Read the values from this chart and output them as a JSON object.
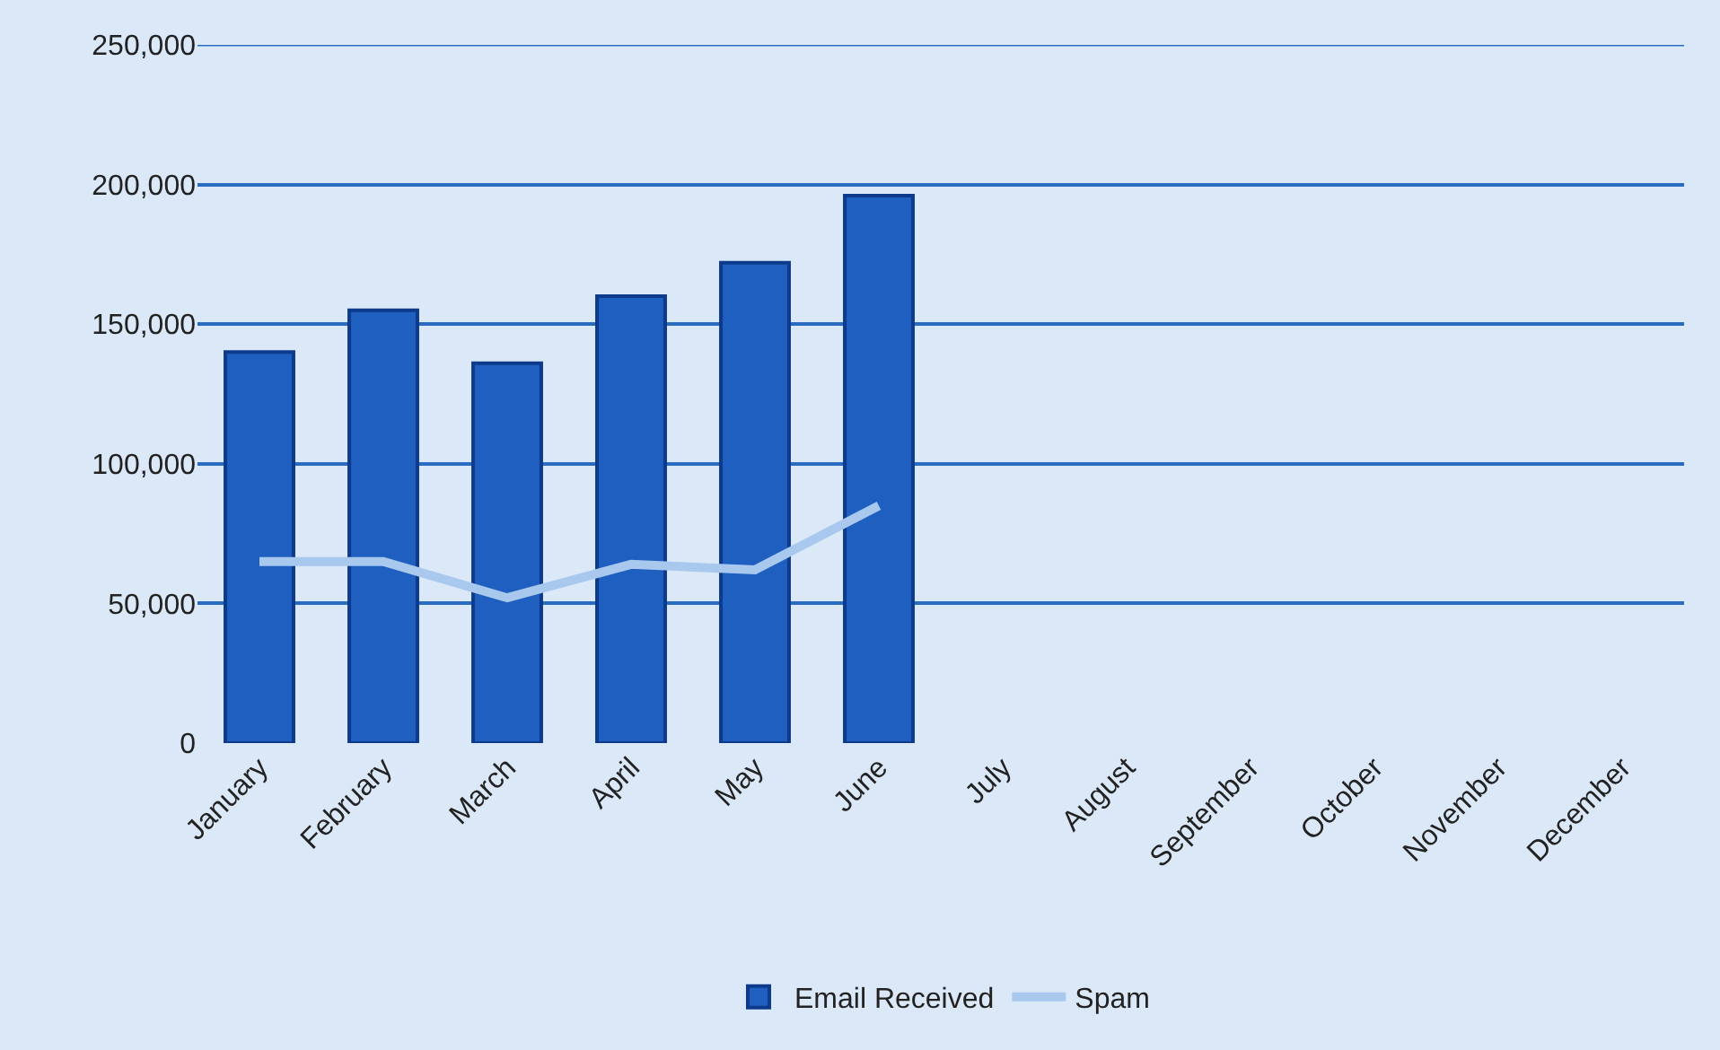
{
  "chart_data": {
    "type": "bar",
    "categories": [
      "January",
      "February",
      "March",
      "April",
      "May",
      "June",
      "July",
      "August",
      "September",
      "October",
      "November",
      "December"
    ],
    "series": [
      {
        "name": "Email Received",
        "color": "#1f5fbf",
        "values": [
          140000,
          155000,
          136000,
          160000,
          172000,
          196000,
          null,
          null,
          null,
          null,
          null,
          null
        ]
      },
      {
        "name": "Spam",
        "type": "line",
        "color": "#a9c8ee",
        "values": [
          65000,
          65000,
          52000,
          64000,
          62000,
          85000,
          null,
          null,
          null,
          null,
          null,
          null
        ]
      }
    ],
    "ylim": [
      0,
      250000
    ],
    "yticks": [
      {
        "value": 0,
        "label": "0"
      },
      {
        "value": 50000,
        "label": "50,000"
      },
      {
        "value": 100000,
        "label": "100,000"
      },
      {
        "value": 150000,
        "label": "150,000"
      },
      {
        "value": 200000,
        "label": "200,000"
      },
      {
        "value": 250000,
        "label": "250,000"
      }
    ],
    "grid": "y",
    "legend": "bottom",
    "marker": "none"
  }
}
